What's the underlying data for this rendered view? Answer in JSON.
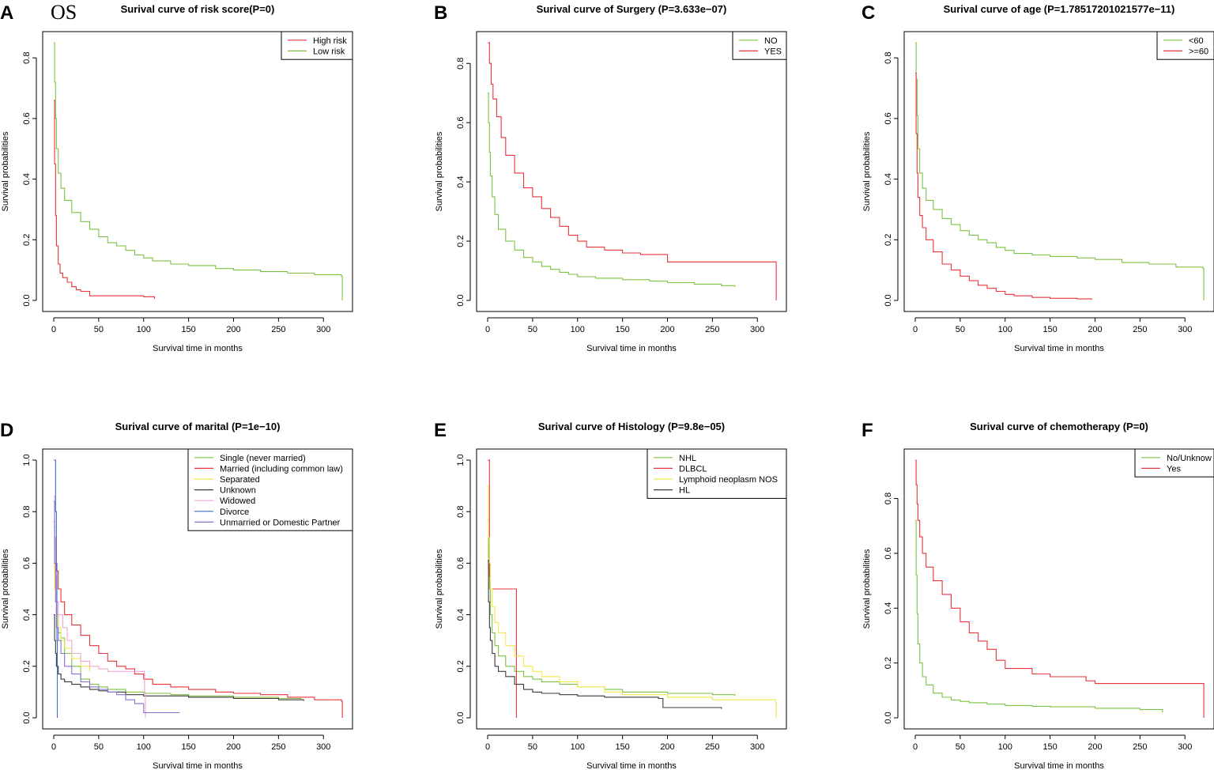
{
  "figure": {
    "os_label": "OS"
  },
  "chart_data": [
    {
      "type": "line",
      "panel": "A",
      "title": "Surival curve of risk score(P=0)",
      "xlabel": "Survival time in months",
      "ylabel": "Survival probabilities",
      "xlim": [
        0,
        320
      ],
      "ylim": [
        0,
        0.85
      ],
      "xticks": [
        0,
        50,
        100,
        150,
        200,
        250,
        300
      ],
      "yticks": [
        0.0,
        0.2,
        0.4,
        0.6,
        0.8
      ],
      "legend_position": "top-right",
      "series": [
        {
          "name": "High risk",
          "color": "#e8333b",
          "x": [
            0,
            1,
            2,
            3,
            5,
            7,
            10,
            15,
            20,
            25,
            30,
            40,
            60,
            80,
            100,
            112
          ],
          "y": [
            0.66,
            0.45,
            0.28,
            0.18,
            0.12,
            0.09,
            0.075,
            0.06,
            0.045,
            0.035,
            0.03,
            0.015,
            0.015,
            0.015,
            0.012,
            0.005
          ]
        },
        {
          "name": "Low risk",
          "color": "#7cc242",
          "x": [
            0,
            1,
            2,
            3,
            5,
            8,
            12,
            20,
            30,
            40,
            50,
            60,
            70,
            80,
            90,
            100,
            110,
            130,
            150,
            180,
            200,
            230,
            260,
            290,
            320,
            321
          ],
          "y": [
            0.85,
            0.72,
            0.6,
            0.5,
            0.42,
            0.37,
            0.33,
            0.29,
            0.26,
            0.235,
            0.21,
            0.19,
            0.18,
            0.165,
            0.15,
            0.14,
            0.13,
            0.12,
            0.115,
            0.105,
            0.1,
            0.095,
            0.09,
            0.085,
            0.08,
            0.0
          ]
        }
      ]
    },
    {
      "type": "line",
      "panel": "B",
      "title": "Surival curve of Surgery (P=3.633e−07)",
      "xlabel": "Survival time in months",
      "ylabel": "Survival probabilities",
      "xlim": [
        0,
        320
      ],
      "ylim": [
        0,
        0.87
      ],
      "xticks": [
        0,
        50,
        100,
        150,
        200,
        250,
        300
      ],
      "yticks": [
        0.0,
        0.2,
        0.4,
        0.6,
        0.8
      ],
      "legend_position": "top-right",
      "series": [
        {
          "name": "NO",
          "color": "#7cc242",
          "x": [
            0,
            1,
            2,
            3,
            5,
            8,
            12,
            20,
            30,
            40,
            50,
            60,
            70,
            80,
            90,
            100,
            120,
            150,
            180,
            200,
            230,
            260,
            275
          ],
          "y": [
            0.7,
            0.6,
            0.5,
            0.42,
            0.35,
            0.29,
            0.24,
            0.2,
            0.17,
            0.145,
            0.13,
            0.115,
            0.105,
            0.095,
            0.088,
            0.08,
            0.075,
            0.07,
            0.065,
            0.06,
            0.055,
            0.05,
            0.045
          ]
        },
        {
          "name": "YES",
          "color": "#e8333b",
          "x": [
            0,
            2,
            4,
            6,
            10,
            15,
            20,
            30,
            40,
            50,
            60,
            70,
            80,
            90,
            100,
            110,
            130,
            150,
            170,
            200,
            250,
            300,
            320,
            321
          ],
          "y": [
            0.87,
            0.8,
            0.73,
            0.68,
            0.62,
            0.55,
            0.49,
            0.43,
            0.38,
            0.35,
            0.31,
            0.28,
            0.25,
            0.22,
            0.2,
            0.18,
            0.17,
            0.16,
            0.155,
            0.13,
            0.13,
            0.13,
            0.13,
            0.0
          ]
        }
      ]
    },
    {
      "type": "line",
      "panel": "C",
      "title": "Surival curve of age (P=1.78517201021577e−11)",
      "xlabel": "Survival time in months",
      "ylabel": "Survival probabilities",
      "xlim": [
        0,
        320
      ],
      "ylim": [
        0,
        0.85
      ],
      "xticks": [
        0,
        50,
        100,
        150,
        200,
        250,
        300
      ],
      "yticks": [
        0.0,
        0.2,
        0.4,
        0.6,
        0.8
      ],
      "legend_position": "top-right",
      "series": [
        {
          "name": "<60",
          "color": "#7cc242",
          "x": [
            0,
            1,
            2,
            3,
            5,
            8,
            12,
            20,
            30,
            40,
            50,
            60,
            70,
            80,
            90,
            100,
            110,
            130,
            150,
            180,
            200,
            230,
            260,
            290,
            320,
            321
          ],
          "y": [
            0.85,
            0.73,
            0.61,
            0.5,
            0.42,
            0.37,
            0.33,
            0.3,
            0.27,
            0.25,
            0.23,
            0.215,
            0.2,
            0.19,
            0.175,
            0.165,
            0.155,
            0.15,
            0.145,
            0.14,
            0.135,
            0.125,
            0.12,
            0.11,
            0.105,
            0.0
          ]
        },
        {
          "name": ">=60",
          "color": "#e8333b",
          "x": [
            0,
            1,
            2,
            3,
            5,
            8,
            12,
            20,
            30,
            40,
            50,
            60,
            70,
            80,
            90,
            100,
            110,
            130,
            150,
            180,
            196
          ],
          "y": [
            0.75,
            0.55,
            0.42,
            0.34,
            0.28,
            0.24,
            0.2,
            0.16,
            0.12,
            0.1,
            0.08,
            0.065,
            0.05,
            0.04,
            0.03,
            0.02,
            0.015,
            0.01,
            0.007,
            0.005,
            0.002
          ]
        }
      ]
    },
    {
      "type": "line",
      "panel": "D",
      "title": "Surival curve of marital (P=1e−10)",
      "xlabel": "Survival time in months",
      "ylabel": "Survival probabilities",
      "xlim": [
        0,
        320
      ],
      "ylim": [
        0,
        1.0
      ],
      "xticks": [
        0,
        50,
        100,
        150,
        200,
        250,
        300
      ],
      "yticks": [
        0.0,
        0.2,
        0.4,
        0.6,
        0.8,
        1.0
      ],
      "legend_position": "top-right",
      "series": [
        {
          "name": "Single (never married)",
          "color": "#7cc242",
          "x": [
            0,
            1,
            2,
            3,
            5,
            8,
            12,
            20,
            30,
            40,
            50,
            60,
            80,
            100,
            130,
            150,
            200,
            250,
            275
          ],
          "y": [
            0.74,
            0.6,
            0.5,
            0.4,
            0.33,
            0.31,
            0.25,
            0.2,
            0.15,
            0.13,
            0.12,
            0.11,
            0.1,
            0.095,
            0.09,
            0.085,
            0.08,
            0.075,
            0.07
          ]
        },
        {
          "name": "Married (including common law)",
          "color": "#e8333b",
          "x": [
            0,
            1,
            2,
            3,
            5,
            8,
            12,
            20,
            30,
            40,
            50,
            60,
            70,
            80,
            90,
            100,
            110,
            130,
            150,
            180,
            200,
            230,
            260,
            290,
            320,
            321
          ],
          "y": [
            0.76,
            0.7,
            0.65,
            0.57,
            0.5,
            0.45,
            0.4,
            0.36,
            0.32,
            0.28,
            0.25,
            0.22,
            0.2,
            0.19,
            0.17,
            0.15,
            0.13,
            0.12,
            0.11,
            0.1,
            0.095,
            0.09,
            0.08,
            0.07,
            0.065,
            0.0
          ]
        },
        {
          "name": "Separated",
          "color": "#f2e84a",
          "x": [
            0,
            1,
            2,
            3,
            5,
            8,
            12,
            20,
            30,
            40
          ],
          "y": [
            0.6,
            0.5,
            0.45,
            0.4,
            0.35,
            0.3,
            0.27,
            0.23,
            0.2,
            0.18
          ]
        },
        {
          "name": "Unknown",
          "color": "#3a3a3a",
          "x": [
            0,
            1,
            2,
            3,
            5,
            8,
            12,
            20,
            30,
            40,
            50,
            60,
            80,
            100,
            150,
            200,
            250,
            278
          ],
          "y": [
            0.4,
            0.3,
            0.25,
            0.2,
            0.17,
            0.15,
            0.14,
            0.13,
            0.12,
            0.11,
            0.105,
            0.1,
            0.09,
            0.085,
            0.08,
            0.075,
            0.07,
            0.065
          ]
        },
        {
          "name": "Widowed",
          "color": "#f2a6d6",
          "x": [
            0,
            1,
            2,
            3,
            5,
            10,
            15,
            20,
            30,
            40,
            50,
            60,
            80,
            100,
            101,
            102
          ],
          "y": [
            0.86,
            0.7,
            0.55,
            0.45,
            0.4,
            0.35,
            0.3,
            0.25,
            0.22,
            0.2,
            0.19,
            0.18,
            0.18,
            0.18,
            0.1,
            0.0
          ]
        },
        {
          "name": "Divorce",
          "color": "#3b6fd1",
          "x": [
            0,
            1,
            2,
            3,
            3.5,
            4
          ],
          "y": [
            1.0,
            1.0,
            0.8,
            0.6,
            0.3,
            0.0
          ]
        },
        {
          "name": "Unmarried or Domestic Partner",
          "color": "#8b6fd6",
          "x": [
            0,
            1,
            2,
            3,
            5,
            8,
            12,
            20,
            30,
            40,
            50,
            60,
            70,
            80,
            90,
            100,
            140
          ],
          "y": [
            0.84,
            0.6,
            0.45,
            0.35,
            0.3,
            0.25,
            0.2,
            0.17,
            0.14,
            0.12,
            0.11,
            0.1,
            0.09,
            0.07,
            0.055,
            0.02,
            0.02
          ]
        }
      ]
    },
    {
      "type": "line",
      "panel": "E",
      "title": "Surival curve of Histology (P=9.8e−05)",
      "xlabel": "Survival time in months",
      "ylabel": "Survival probabilities",
      "xlim": [
        0,
        320
      ],
      "ylim": [
        0,
        1.0
      ],
      "xticks": [
        0,
        50,
        100,
        150,
        200,
        250,
        300
      ],
      "yticks": [
        0.0,
        0.2,
        0.4,
        0.6,
        0.8,
        1.0
      ],
      "legend_position": "top-right",
      "series": [
        {
          "name": "NHL",
          "color": "#7cc242",
          "x": [
            0,
            1,
            2,
            3,
            5,
            8,
            12,
            20,
            30,
            40,
            50,
            60,
            80,
            100,
            130,
            150,
            200,
            250,
            275
          ],
          "y": [
            0.77,
            0.6,
            0.5,
            0.4,
            0.33,
            0.28,
            0.24,
            0.2,
            0.18,
            0.16,
            0.15,
            0.14,
            0.13,
            0.12,
            0.11,
            0.1,
            0.095,
            0.09,
            0.085
          ]
        },
        {
          "name": "DLBCL",
          "color": "#e8333b",
          "x": [
            0,
            1,
            2,
            3,
            5,
            10,
            31,
            32
          ],
          "y": [
            1.0,
            1.0,
            0.55,
            0.5,
            0.5,
            0.5,
            0.5,
            0.0
          ]
        },
        {
          "name": "Lymphoid neoplasm NOS",
          "color": "#f2e84a",
          "x": [
            0,
            1,
            2,
            3,
            5,
            8,
            12,
            20,
            30,
            40,
            50,
            60,
            80,
            100,
            130,
            150,
            200,
            250,
            320,
            321
          ],
          "y": [
            0.9,
            0.7,
            0.6,
            0.5,
            0.43,
            0.37,
            0.33,
            0.28,
            0.24,
            0.2,
            0.18,
            0.16,
            0.14,
            0.12,
            0.1,
            0.09,
            0.08,
            0.07,
            0.06,
            0.0
          ]
        },
        {
          "name": "HL",
          "color": "#3a3a3a",
          "x": [
            0,
            1,
            2,
            3,
            5,
            8,
            12,
            20,
            30,
            40,
            50,
            60,
            80,
            100,
            130,
            150,
            190,
            195,
            250,
            260
          ],
          "y": [
            0.61,
            0.45,
            0.35,
            0.3,
            0.25,
            0.2,
            0.18,
            0.16,
            0.13,
            0.11,
            0.1,
            0.095,
            0.09,
            0.085,
            0.08,
            0.08,
            0.075,
            0.04,
            0.04,
            0.035
          ]
        }
      ]
    },
    {
      "type": "line",
      "panel": "F",
      "title": "Surival curve of chemotherapy (P=0)",
      "xlabel": "Survival time in months",
      "ylabel": "Survival probabilities",
      "xlim": [
        0,
        320
      ],
      "ylim": [
        0,
        0.94
      ],
      "xticks": [
        0,
        50,
        100,
        150,
        200,
        250,
        300
      ],
      "yticks": [
        0.0,
        0.2,
        0.4,
        0.6,
        0.8
      ],
      "legend_position": "top-right",
      "series": [
        {
          "name": "No/Unknow",
          "color": "#7cc242",
          "x": [
            0,
            1,
            2,
            3,
            5,
            8,
            12,
            20,
            30,
            40,
            50,
            60,
            80,
            100,
            130,
            150,
            200,
            250,
            275
          ],
          "y": [
            0.72,
            0.52,
            0.38,
            0.27,
            0.2,
            0.15,
            0.12,
            0.09,
            0.075,
            0.065,
            0.06,
            0.055,
            0.05,
            0.045,
            0.042,
            0.04,
            0.035,
            0.03,
            0.02
          ]
        },
        {
          "name": "Yes",
          "color": "#e8333b",
          "x": [
            0,
            1,
            2,
            3,
            5,
            8,
            12,
            20,
            30,
            40,
            50,
            60,
            70,
            80,
            90,
            100,
            130,
            150,
            190,
            200,
            250,
            320,
            321
          ],
          "y": [
            0.94,
            0.85,
            0.78,
            0.72,
            0.66,
            0.6,
            0.55,
            0.5,
            0.45,
            0.4,
            0.35,
            0.31,
            0.28,
            0.25,
            0.21,
            0.18,
            0.16,
            0.15,
            0.135,
            0.125,
            0.125,
            0.125,
            0.0
          ]
        }
      ]
    }
  ]
}
